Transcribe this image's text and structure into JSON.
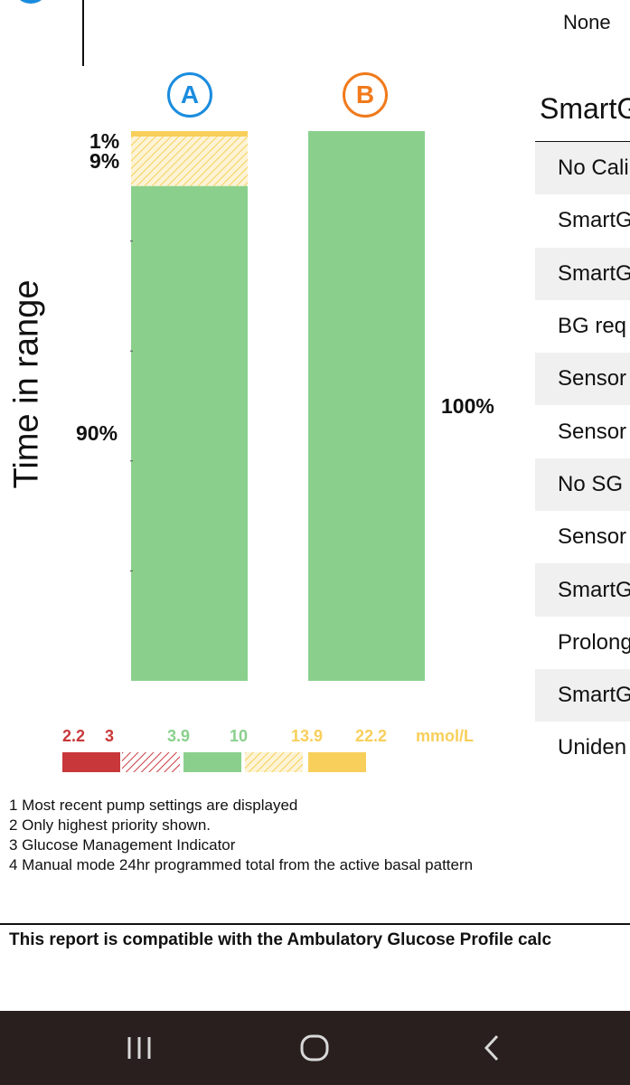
{
  "header": {
    "none_label": "None"
  },
  "chart_data": {
    "type": "bar",
    "title": "",
    "ylabel": "Time in range",
    "unit": "mmol/L",
    "categories": [
      "A",
      "B"
    ],
    "category_colors": {
      "A": "#1a8cde",
      "B": "#f07a1b"
    },
    "series": [
      {
        "name": "13.9-22.2",
        "style": "solid",
        "color": "#f7cf5a",
        "values": [
          1,
          0
        ],
        "label": "1%"
      },
      {
        "name": "10-13.9",
        "style": "hatched",
        "color": "#f7cf5a",
        "values": [
          9,
          0
        ],
        "label": "9%"
      },
      {
        "name": "3.9-10",
        "style": "solid",
        "color": "#8ad08c",
        "values": [
          90,
          100
        ],
        "label_a": "90%",
        "label_b": "100%"
      }
    ],
    "ylim": [
      0,
      100
    ],
    "legend": {
      "thresholds": [
        {
          "value": "2.2",
          "color": "#c8383a"
        },
        {
          "value": "3",
          "color": "#c8383a"
        },
        {
          "value": "3.9",
          "color": "#8ad08c"
        },
        {
          "value": "10",
          "color": "#8ad08c"
        },
        {
          "value": "13.9",
          "color": "#f7cf5a"
        },
        {
          "value": "22.2",
          "color": "#f7cf5a"
        }
      ],
      "unit_label": "mmol/L",
      "swatches": [
        {
          "range": "<3",
          "style": "solid",
          "color": "#c8383a"
        },
        {
          "range": "3-3.9",
          "style": "hatched",
          "color": "#c8383a"
        },
        {
          "range": "3.9-10",
          "style": "solid",
          "color": "#8ad08c"
        },
        {
          "range": "10-13.9",
          "style": "hatched",
          "color": "#f7cf5a"
        },
        {
          "range": ">13.9",
          "style": "solid",
          "color": "#f7cf5a"
        }
      ]
    }
  },
  "smartguard": {
    "title": "SmartG",
    "rows": [
      "No Cali",
      "SmartG",
      "SmartG",
      "BG req",
      "Sensor",
      "Sensor",
      "No SG",
      "Sensor",
      "SmartG",
      "Prolong",
      "SmartG",
      "Uniden"
    ]
  },
  "footnotes": [
    "1 Most recent pump settings are displayed",
    "2 Only highest priority shown.",
    "3 Glucose Management Indicator",
    "4 Manual mode 24hr programmed total from the active basal pattern"
  ],
  "compat_text": "This report is compatible with the Ambulatory Glucose Profile calc",
  "navbar": {
    "recents_icon": "recents-icon",
    "home_icon": "home-icon",
    "back_icon": "back-icon"
  }
}
